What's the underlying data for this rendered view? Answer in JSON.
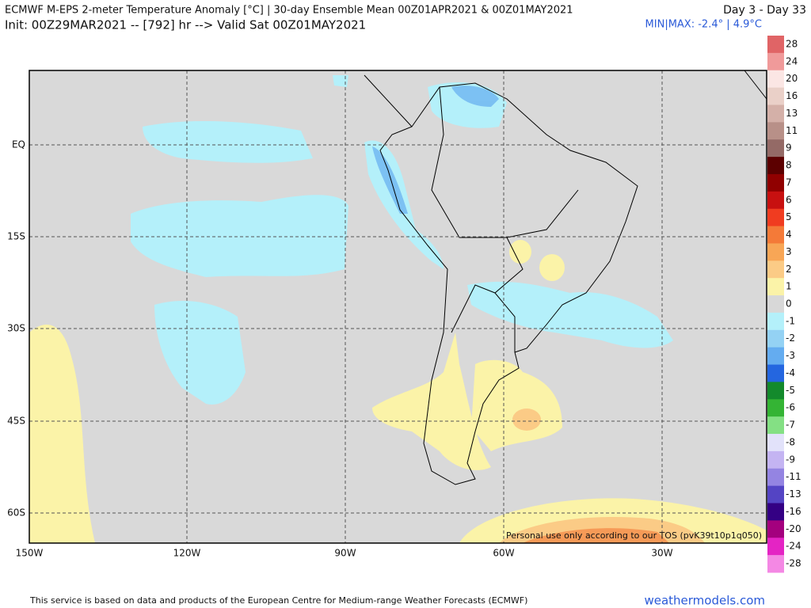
{
  "header": {
    "title": "ECMWF M-EPS 2-meter Temperature Anomaly [°C] | 30-day Ensemble Mean 00Z01APR2021 & 00Z01MAY2021",
    "init": "Init: 00Z29MAR2021 -- [792] hr --> Valid Sat 00Z01MAY2021",
    "range": "Day 3 - Day 33",
    "minmax": "MIN|MAX: -2.4° | 4.9°C"
  },
  "map": {
    "lat_labels": [
      "EQ",
      "15S",
      "30S",
      "45S",
      "60S"
    ],
    "lon_labels": [
      "150W",
      "120W",
      "90W",
      "60W",
      "30W"
    ],
    "watermark": "Personal use only according to our TOS (pvK39t10p1q050)"
  },
  "colorbar": {
    "labels": [
      "28",
      "24",
      "20",
      "16",
      "13",
      "11",
      "9",
      "8",
      "7",
      "6",
      "5",
      "4",
      "3",
      "2",
      "1",
      "0",
      "-1",
      "-2",
      "-3",
      "-4",
      "-5",
      "-6",
      "-7",
      "-8",
      "-9",
      "-11",
      "-13",
      "-16",
      "-20",
      "-24",
      "-28"
    ],
    "colors": [
      "#e06466",
      "#f09a9a",
      "#fbe6e4",
      "#ead0c8",
      "#d4b0a8",
      "#b89088",
      "#946a66",
      "#5c0000",
      "#900000",
      "#c81010",
      "#f03c20",
      "#f47a38",
      "#f8a656",
      "#fbcb86",
      "#fbf3a8",
      "#d8d8d8",
      "#b4f0fa",
      "#94d2f4",
      "#64acf0",
      "#2466e0",
      "#138a2c",
      "#34b434",
      "#84e084",
      "#e2e2fa",
      "#c4b4f2",
      "#9484e2",
      "#5444c4",
      "#340084",
      "#a4007e",
      "#e424c4",
      "#f488e4"
    ]
  },
  "footer": {
    "note": "This service is based on data and products of the European Centre for Medium-range Weather Forecasts (ECMWF)",
    "site": "weathermodels.com"
  }
}
